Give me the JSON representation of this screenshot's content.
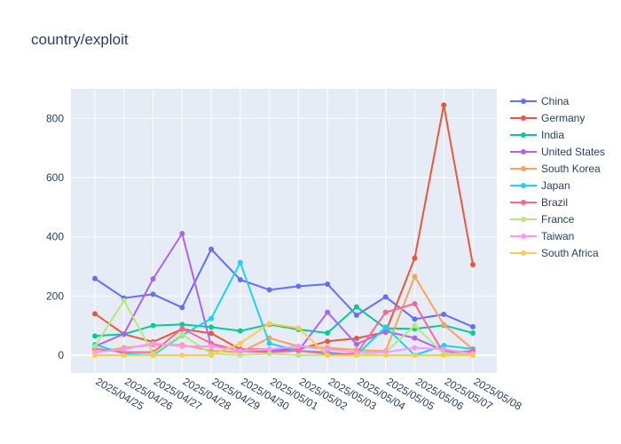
{
  "chart_data": {
    "type": "line",
    "title": "country/exploit",
    "xlabel": "",
    "ylabel": "",
    "categories": [
      "2025/04/25",
      "2025/04/26",
      "2025/04/27",
      "2025/04/28",
      "2025/04/29",
      "2025/04/30",
      "2025/05/01",
      "2025/05/02",
      "2025/05/03",
      "2025/05/04",
      "2025/05/05",
      "2025/05/06",
      "2025/05/07",
      "2025/05/08"
    ],
    "ylim": [
      -60,
      900
    ],
    "yticks": [
      0,
      200,
      400,
      600,
      800
    ],
    "grid": true,
    "legend_position": "right",
    "series": [
      {
        "name": "China",
        "color": "#636efa",
        "values": [
          259,
          193,
          206,
          161,
          358,
          255,
          221,
          233,
          240,
          135,
          197,
          122,
          138,
          96
        ]
      },
      {
        "name": "Germany",
        "color": "#EF553B",
        "values": [
          140,
          71,
          45,
          88,
          74,
          20,
          20,
          20,
          47,
          57,
          78,
          328,
          845,
          306
        ]
      },
      {
        "name": "India",
        "color": "#00cc96",
        "values": [
          65,
          71,
          100,
          104,
          95,
          82,
          104,
          87,
          75,
          163,
          91,
          89,
          101,
          75
        ]
      },
      {
        "name": "United States",
        "color": "#ab63fa",
        "values": [
          30,
          72,
          258,
          411,
          31,
          16,
          16,
          15,
          145,
          37,
          81,
          58,
          15,
          10
        ]
      },
      {
        "name": "South Korea",
        "color": "#FFA15A",
        "values": [
          10,
          25,
          35,
          35,
          15,
          10,
          58,
          30,
          25,
          18,
          14,
          266,
          103,
          20
        ]
      },
      {
        "name": "Japan",
        "color": "#19d3f3",
        "values": [
          36,
          5,
          0,
          67,
          124,
          313,
          40,
          15,
          10,
          0,
          95,
          0,
          33,
          21
        ]
      },
      {
        "name": "Brazil",
        "color": "#FF6692",
        "values": [
          22,
          10,
          10,
          90,
          40,
          14,
          10,
          15,
          5,
          5,
          145,
          174,
          5,
          15
        ]
      },
      {
        "name": "France",
        "color": "#B6E880",
        "values": [
          30,
          185,
          5,
          70,
          5,
          0,
          5,
          0,
          0,
          0,
          10,
          100,
          5,
          5
        ]
      },
      {
        "name": "Taiwan",
        "color": "#FF97FF",
        "values": [
          10,
          20,
          40,
          30,
          30,
          15,
          20,
          30,
          20,
          10,
          10,
          25,
          20,
          5
        ]
      },
      {
        "name": "South Africa",
        "color": "#FECB52",
        "values": [
          0,
          0,
          0,
          0,
          0,
          40,
          107,
          92,
          0,
          0,
          0,
          0,
          0,
          0
        ]
      }
    ]
  }
}
